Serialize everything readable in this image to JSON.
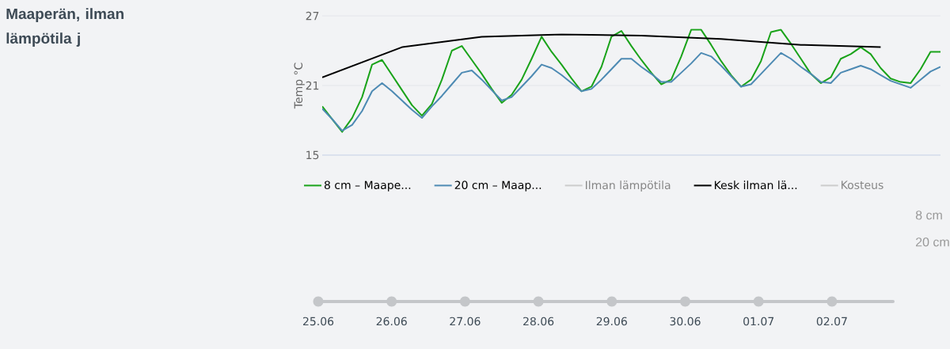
{
  "chart_data": {
    "type": "line",
    "title": "Maaperän, ilman lämpötila j",
    "ylabel": "Temp °C",
    "categories": [
      null,
      null,
      null,
      null,
      null,
      null,
      null,
      null,
      null,
      null,
      null,
      null,
      null,
      null,
      null,
      null,
      null,
      null,
      null,
      null,
      null,
      null,
      null,
      null,
      null,
      null,
      null,
      null,
      null,
      null,
      null,
      null,
      null,
      null,
      null,
      null,
      null,
      null,
      null,
      null,
      null,
      null,
      null,
      null,
      null,
      null,
      null,
      null,
      null,
      null,
      null,
      null,
      null,
      null,
      null,
      null,
      null,
      null,
      null,
      null,
      null,
      null,
      null
    ],
    "series": [
      {
        "name": "8 cm – Maape...",
        "color": "#1aa31a",
        "values": [
          19.2,
          18.1,
          17.0,
          18.2,
          20.0,
          22.8,
          23.2,
          21.9,
          20.6,
          19.3,
          18.4,
          19.4,
          21.5,
          24.0,
          24.4,
          23.2,
          22.0,
          20.7,
          19.5,
          20.2,
          21.5,
          23.3,
          25.2,
          23.9,
          22.8,
          21.6,
          20.5,
          20.9,
          22.6,
          25.2,
          25.7,
          24.4,
          23.2,
          22.1,
          21.1,
          21.5,
          23.5,
          25.8,
          25.8,
          24.5,
          23.1,
          21.9,
          20.9,
          21.5,
          23.1,
          25.6,
          25.8,
          24.6,
          23.3,
          22.0,
          21.2,
          21.7,
          23.3,
          23.7,
          24.3,
          23.7,
          22.5,
          21.6,
          21.3,
          21.2,
          22.4,
          23.9,
          23.9
        ]
      },
      {
        "name": "20 cm – Maap...",
        "color": "#4d8ab3",
        "values": [
          19.0,
          18.1,
          17.1,
          17.6,
          18.8,
          20.5,
          21.2,
          20.5,
          19.7,
          18.9,
          18.2,
          19.2,
          20.1,
          21.1,
          22.1,
          22.3,
          21.5,
          20.6,
          19.7,
          20.0,
          20.9,
          21.8,
          22.8,
          22.5,
          21.9,
          21.2,
          20.5,
          20.7,
          21.5,
          22.4,
          23.3,
          23.3,
          22.6,
          22.0,
          21.3,
          21.3,
          22.1,
          22.9,
          23.8,
          23.5,
          22.7,
          21.8,
          20.9,
          21.1,
          22.0,
          22.9,
          23.8,
          23.3,
          22.6,
          22.0,
          21.3,
          21.2,
          22.1,
          22.4,
          22.7,
          22.4,
          21.9,
          21.4,
          21.1,
          20.8,
          21.5,
          22.2,
          22.6
        ]
      },
      {
        "name": "Ilman lämpötila",
        "color": "#cccccc",
        "values": [
          null,
          null,
          null,
          null,
          null,
          null,
          null,
          null,
          null,
          null,
          null,
          null,
          null,
          null,
          null,
          null,
          null,
          null,
          null,
          null,
          null,
          null,
          null,
          null,
          null,
          null,
          null,
          null,
          null,
          null,
          null,
          null,
          null,
          null,
          null,
          null,
          null,
          null,
          null,
          null,
          null,
          null,
          null,
          null,
          null,
          null,
          null,
          null,
          null,
          null,
          null,
          null,
          null,
          null,
          null,
          null,
          null,
          null,
          null,
          null,
          null,
          null,
          null
        ]
      },
      {
        "name": "Kesk ilman lä...",
        "color": "#000000",
        "values": [
          21.7,
          null,
          null,
          null,
          null,
          null,
          null,
          null,
          24.3,
          null,
          null,
          null,
          null,
          null,
          null,
          null,
          25.2,
          null,
          null,
          null,
          null,
          null,
          null,
          null,
          25.4,
          null,
          null,
          null,
          null,
          null,
          null,
          null,
          25.3,
          null,
          null,
          null,
          null,
          null,
          null,
          null,
          25.0,
          null,
          null,
          null,
          null,
          null,
          null,
          null,
          24.5,
          null,
          null,
          null,
          null,
          null,
          null,
          null,
          24.3,
          null,
          null,
          null,
          null,
          null,
          null
        ]
      },
      {
        "name": "Kosteus",
        "color": "#cccccc",
        "values": [
          null,
          null,
          null,
          null,
          null,
          null,
          null,
          null,
          null,
          null,
          null,
          null,
          null,
          null,
          null,
          null,
          null,
          null,
          null,
          null,
          null,
          null,
          null,
          null,
          null,
          null,
          null,
          null,
          null,
          null,
          null,
          null,
          null,
          null,
          null,
          null,
          null,
          null,
          null,
          null,
          null,
          null,
          null,
          null,
          null,
          null,
          null,
          null,
          null,
          null,
          null,
          null,
          null,
          null,
          null,
          null,
          null,
          null,
          null,
          null,
          null,
          null,
          null
        ]
      }
    ],
    "ylim": [
      15,
      27
    ],
    "yticks": [
      15,
      21,
      27
    ],
    "grid": "y",
    "legend": "bottom",
    "annotations": [
      "8 cm",
      "20 cm",
      "25.06",
      "26.06",
      "27.06",
      "28.06",
      "29.06",
      "30.06",
      "01.07",
      "02.07"
    ]
  }
}
